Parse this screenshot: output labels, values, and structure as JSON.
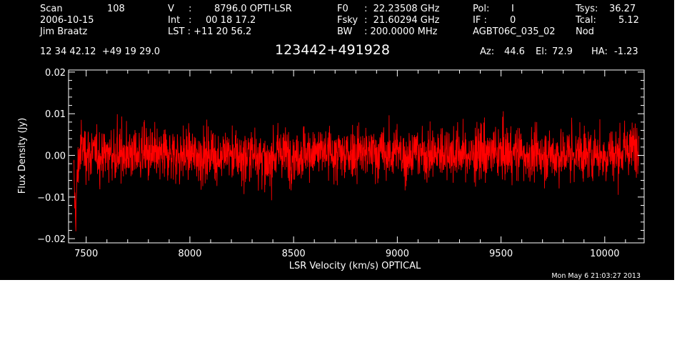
{
  "header": {
    "scan_label": "Scan",
    "scan_value": "108",
    "date": "2006-10-15",
    "observer": "Jim Braatz",
    "v_label": "V",
    "v_colon": ":",
    "v_value": "8796.0 OPTI-LSR",
    "int_label": "Int",
    "int_colon": ":",
    "int_value": "00 18 17.2",
    "lst_text": "LST : +11 20 56.2",
    "f0_label": "F0",
    "f0_value": ":  22.23508 GHz",
    "fsky_label": "Fsky",
    "fsky_value": ":  21.60294 GHz",
    "bw_label": "BW",
    "bw_value": ": 200.0000 MHz",
    "pol_label": "Pol:",
    "pol_value": "I",
    "if_label": "IF :",
    "if_value": "0",
    "project": "AGBT06C_035_02",
    "tsys_label": "Tsys:",
    "tsys_value": "36.27",
    "tcal_label": "Tcal:",
    "tcal_value": "5.12",
    "nod": "Nod",
    "coords": "12 34 42.12  +49 19 29.0",
    "source": "123442+491928",
    "az_label": "Az:",
    "az_value": "44.6",
    "el_label": "El:",
    "el_value": "72.9",
    "ha_label": "HA:",
    "ha_value": "-1.23"
  },
  "footer": {
    "timestamp": "Mon May  6 21:03:27 2013"
  },
  "colors": {
    "background": "#000000",
    "axes": "#ffffff",
    "trace": "#ff0000"
  },
  "chart_data": {
    "type": "line",
    "title": "123442+491928",
    "xlabel": "LSR Velocity (km/s) OPTICAL",
    "ylabel": "Flux Density (Jy)",
    "xlim": [
      7415,
      10190
    ],
    "ylim": [
      -0.021,
      0.0205
    ],
    "x_major_ticks": [
      7500,
      8000,
      8500,
      9000,
      9500,
      10000
    ],
    "x_tick_labels": [
      "7500",
      "8000",
      "8500",
      "9000",
      "9500",
      "10000"
    ],
    "x_minor_step": 100,
    "y_major_ticks": [
      -0.02,
      -0.01,
      0.0,
      0.01,
      0.02
    ],
    "y_tick_labels": [
      "−0.02",
      "−0.01",
      "0.00",
      "0.01",
      "0.02"
    ],
    "y_minor_step": 0.002,
    "grid": false,
    "series": [
      {
        "color": "#ff0000",
        "x": [
          7440,
          7445,
          7450,
          7455,
          7460,
          7470,
          7480,
          7500,
          7550,
          7600,
          7650,
          7700,
          7750,
          7800,
          7850,
          7900,
          7950,
          8000,
          8050,
          8100,
          8150,
          8200,
          8250,
          8300,
          8350,
          8370,
          8400,
          8450,
          8500,
          8550,
          8600,
          8650,
          8700,
          8750,
          8800,
          8850,
          8900,
          8950,
          9000,
          9050,
          9100,
          9150,
          9200,
          9250,
          9300,
          9350,
          9400,
          9450,
          9500,
          9550,
          9600,
          9650,
          9700,
          9750,
          9800,
          9850,
          9900,
          9950,
          10000,
          10050,
          10100,
          10130,
          10150,
          10165
        ],
        "y": [
          -0.006,
          -0.01,
          -0.014,
          -0.008,
          -0.003,
          0.001,
          0.002,
          0.001,
          0.0,
          0.0005,
          0.0003,
          0.0008,
          0.0,
          0.0004,
          -0.0002,
          0.0006,
          0.0,
          0.0004,
          0.0,
          -0.0003,
          0.0005,
          0.0003,
          -0.0004,
          0.0004,
          0.0,
          -0.004,
          0.0002,
          0.0006,
          0.0,
          0.0008,
          0.0003,
          0.0008,
          0.0,
          0.0005,
          0.0008,
          0.0004,
          0.0006,
          0.0003,
          0.0007,
          0.0002,
          0.0007,
          0.0,
          0.0006,
          0.0004,
          0.0008,
          0.0,
          0.0005,
          0.0006,
          0.0002,
          0.0007,
          0.0004,
          0.0,
          0.0006,
          0.0003,
          0.0,
          0.0006,
          0.0002,
          0.0004,
          0.0003,
          0.0005,
          0.001,
          0.0015,
          0.0025,
          0.005
        ],
        "noise_rms_jy": 0.0032
      }
    ]
  }
}
